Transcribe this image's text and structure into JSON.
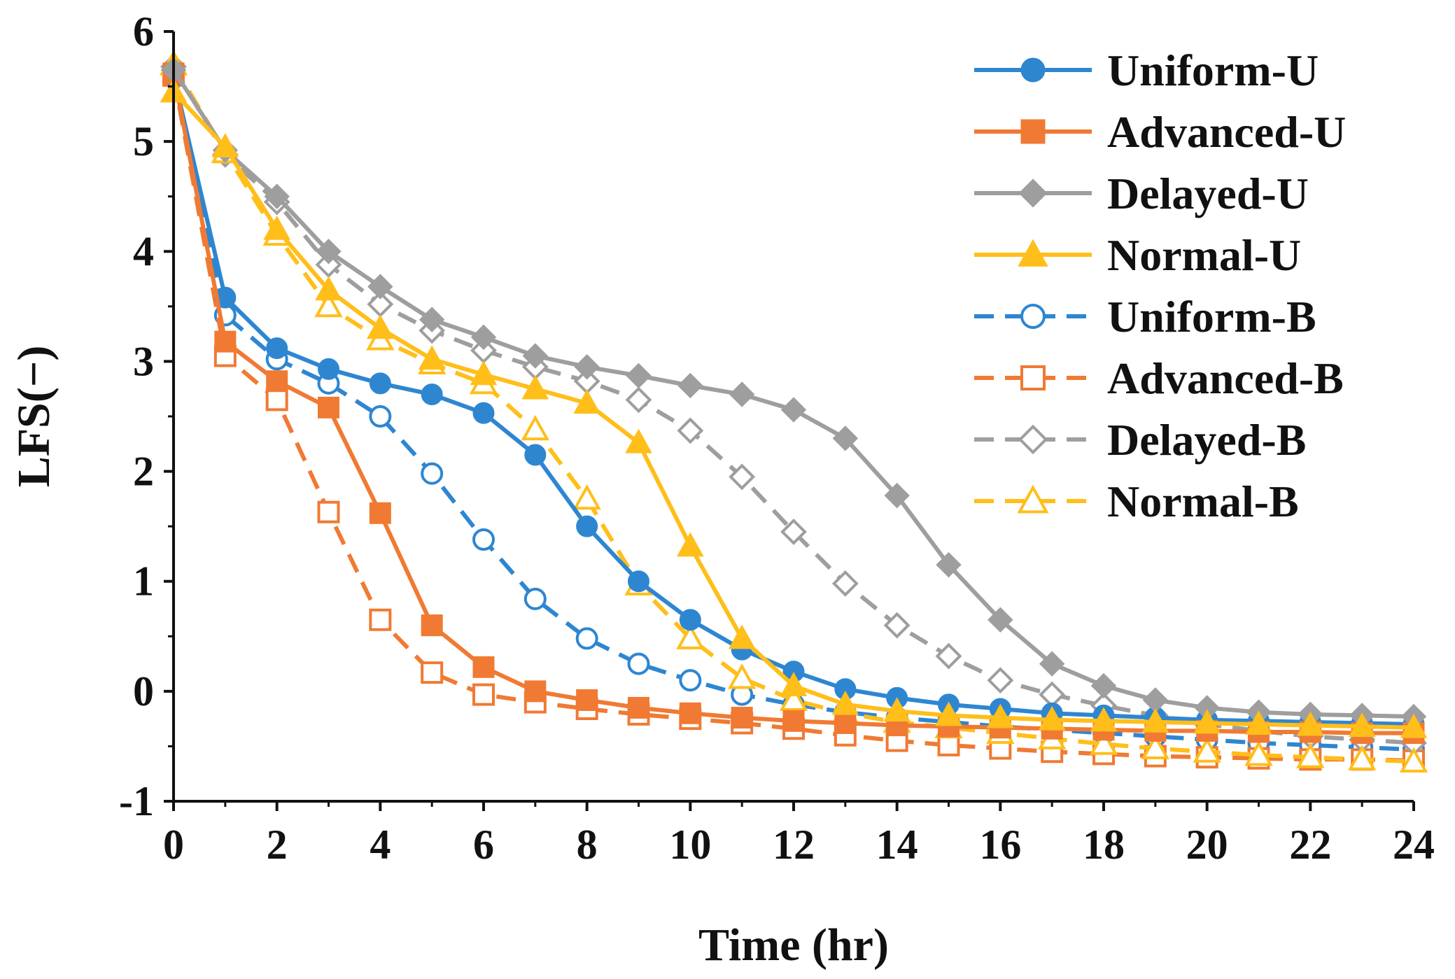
{
  "chart_data": {
    "type": "line",
    "title": "",
    "xlabel": "Time (hr)",
    "ylabel": "LFS(−)",
    "xlim": [
      0,
      24
    ],
    "ylim": [
      -1,
      6
    ],
    "xticks": [
      "0",
      "2",
      "4",
      "6",
      "8",
      "10",
      "12",
      "14",
      "16",
      "18",
      "20",
      "22",
      "24"
    ],
    "yticks": [
      "-1",
      "0",
      "1",
      "2",
      "3",
      "4",
      "5",
      "6"
    ],
    "grid": false,
    "legend_position": "top-right",
    "x": [
      0,
      1,
      2,
      3,
      4,
      5,
      6,
      7,
      8,
      9,
      10,
      11,
      12,
      13,
      14,
      15,
      16,
      17,
      18,
      19,
      20,
      21,
      22,
      23,
      24
    ],
    "series": [
      {
        "name": "Uniform-U",
        "color": "#2E86D1",
        "marker": "circle",
        "filled": true,
        "dashed": false,
        "values": [
          5.6,
          3.58,
          3.12,
          2.93,
          2.8,
          2.7,
          2.53,
          2.15,
          1.5,
          1.0,
          0.65,
          0.38,
          0.18,
          0.02,
          -0.06,
          -0.12,
          -0.16,
          -0.2,
          -0.22,
          -0.24,
          -0.26,
          -0.27,
          -0.28,
          -0.29,
          -0.3
        ]
      },
      {
        "name": "Advanced-U",
        "color": "#F07A33",
        "marker": "square",
        "filled": true,
        "dashed": false,
        "values": [
          5.62,
          3.18,
          2.82,
          2.58,
          1.62,
          0.6,
          0.22,
          0.0,
          -0.08,
          -0.15,
          -0.2,
          -0.24,
          -0.27,
          -0.29,
          -0.31,
          -0.32,
          -0.33,
          -0.34,
          -0.35,
          -0.36,
          -0.36,
          -0.37,
          -0.37,
          -0.38,
          -0.38
        ]
      },
      {
        "name": "Delayed-U",
        "color": "#9E9E9E",
        "marker": "diamond",
        "filled": true,
        "dashed": false,
        "values": [
          5.65,
          4.92,
          4.5,
          4.0,
          3.68,
          3.38,
          3.22,
          3.05,
          2.95,
          2.87,
          2.78,
          2.7,
          2.56,
          2.3,
          1.78,
          1.15,
          0.65,
          0.25,
          0.05,
          -0.08,
          -0.15,
          -0.19,
          -0.21,
          -0.22,
          -0.23
        ]
      },
      {
        "name": "Normal-U",
        "color": "#FFBE1A",
        "marker": "triangle",
        "filled": true,
        "dashed": false,
        "values": [
          5.45,
          4.95,
          4.2,
          3.65,
          3.3,
          3.02,
          2.88,
          2.75,
          2.62,
          2.26,
          1.32,
          0.48,
          0.05,
          -0.12,
          -0.18,
          -0.22,
          -0.24,
          -0.26,
          -0.27,
          -0.28,
          -0.29,
          -0.3,
          -0.31,
          -0.32,
          -0.33
        ]
      },
      {
        "name": "Uniform-B",
        "color": "#2E86D1",
        "marker": "circle",
        "filled": false,
        "dashed": true,
        "values": [
          5.58,
          3.42,
          3.02,
          2.8,
          2.5,
          1.98,
          1.38,
          0.84,
          0.48,
          0.25,
          0.1,
          -0.03,
          -0.12,
          -0.19,
          -0.24,
          -0.28,
          -0.32,
          -0.35,
          -0.38,
          -0.41,
          -0.44,
          -0.47,
          -0.49,
          -0.51,
          -0.53
        ]
      },
      {
        "name": "Advanced-B",
        "color": "#F07A33",
        "marker": "square",
        "filled": false,
        "dashed": true,
        "values": [
          5.6,
          3.05,
          2.65,
          1.63,
          0.65,
          0.17,
          -0.03,
          -0.1,
          -0.16,
          -0.21,
          -0.25,
          -0.29,
          -0.34,
          -0.4,
          -0.45,
          -0.49,
          -0.52,
          -0.55,
          -0.57,
          -0.59,
          -0.6,
          -0.61,
          -0.62,
          -0.62,
          -0.63
        ]
      },
      {
        "name": "Delayed-B",
        "color": "#9E9E9E",
        "marker": "diamond",
        "filled": false,
        "dashed": true,
        "values": [
          5.68,
          4.88,
          4.45,
          3.88,
          3.52,
          3.28,
          3.1,
          2.95,
          2.82,
          2.65,
          2.37,
          1.95,
          1.45,
          0.98,
          0.6,
          0.32,
          0.1,
          -0.03,
          -0.13,
          -0.22,
          -0.3,
          -0.36,
          -0.41,
          -0.44,
          -0.47
        ]
      },
      {
        "name": "Normal-B",
        "color": "#FFBE1A",
        "marker": "triangle",
        "filled": false,
        "dashed": true,
        "values": [
          5.7,
          4.9,
          4.15,
          3.5,
          3.2,
          2.98,
          2.8,
          2.38,
          1.75,
          0.97,
          0.48,
          0.12,
          -0.08,
          -0.2,
          -0.28,
          -0.33,
          -0.38,
          -0.43,
          -0.48,
          -0.52,
          -0.55,
          -0.58,
          -0.6,
          -0.62,
          -0.64
        ]
      }
    ]
  }
}
